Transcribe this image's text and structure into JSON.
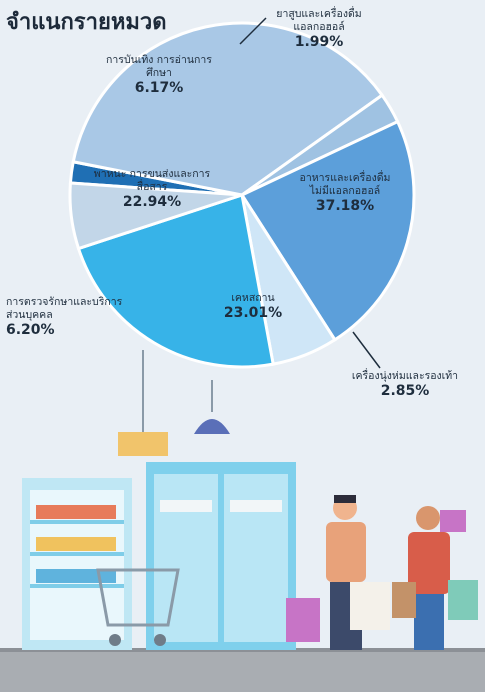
{
  "title": "จำแนกรายหมวด",
  "chart_data": {
    "type": "pie",
    "title": "จำแนกรายหมวด",
    "slices": [
      {
        "label": "ยาสูบและเครื่องดื่มแอลกอฮอล์",
        "value": 1.99,
        "value_text": "1.99%",
        "color": "#1f6fb4"
      },
      {
        "label": "อาหารและเครื่องดื่มไม่มีแอลกอฮอล์",
        "value": 37.18,
        "value_text": "37.18%",
        "color": "#a9c8e6"
      },
      {
        "label": "เครื่องนุ่งห่มและรองเท้า",
        "value": 2.85,
        "value_text": "2.85%",
        "color": "#9fc2e2"
      },
      {
        "label": "เคหสถาน",
        "value": 23.01,
        "value_text": "23.01%",
        "color": "#5c9fda"
      },
      {
        "label": "การตรวจรักษาและบริการส่วนบุคคล",
        "value": 6.2,
        "value_text": "6.20%",
        "color": "#cfe6f7"
      },
      {
        "label": "พาหนะ การขนส่งและการสื่อสาร",
        "value": 22.94,
        "value_text": "22.94%",
        "color": "#37b3e8"
      },
      {
        "label": "การบันเทิง การอ่านการศึกษา",
        "value": 6.17,
        "value_text": "6.17%",
        "color": "#c2d6e8"
      }
    ]
  },
  "illustration": {
    "colors": {
      "floor": "#a9adb2",
      "fridge": "#7fd0ec",
      "lamp": "#f1c46b"
    }
  }
}
